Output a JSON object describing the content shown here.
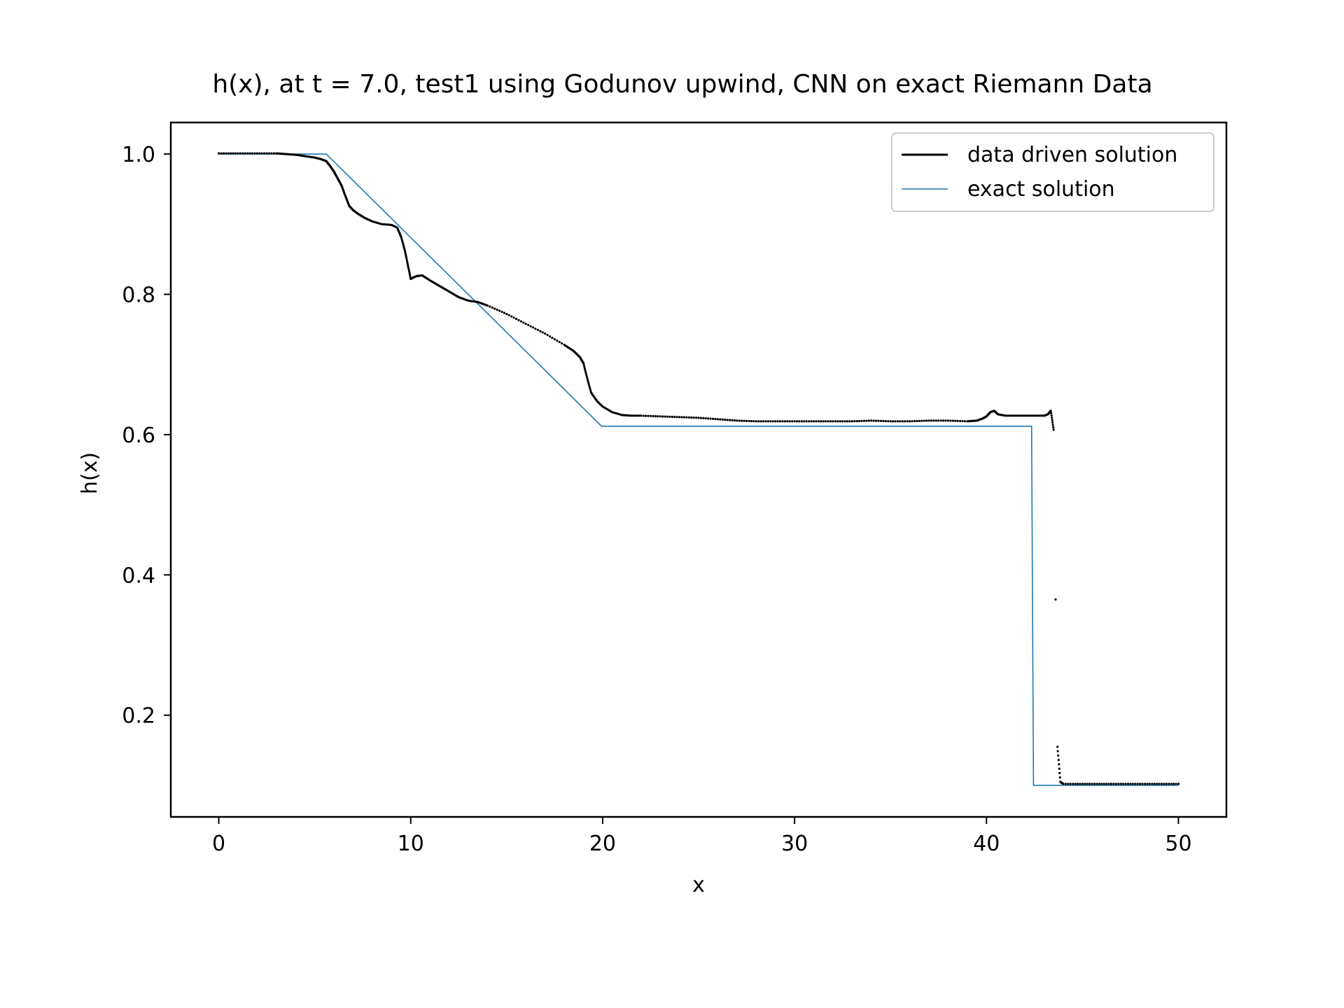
{
  "chart_data": {
    "type": "line",
    "title": "h(x), at t = 7.0, test1 using Godunov upwind, CNN on exact Riemann Data",
    "xlabel": "x",
    "ylabel": "h(x)",
    "xlim": [
      -2.5,
      52.5
    ],
    "ylim": [
      0.055,
      1.045
    ],
    "xticks": [
      0,
      10,
      20,
      30,
      40,
      50
    ],
    "xtick_labels": [
      "0",
      "10",
      "20",
      "30",
      "40",
      "50"
    ],
    "yticks": [
      0.2,
      0.4,
      0.6,
      0.8,
      1.0
    ],
    "ytick_labels": [
      "0.2",
      "0.4",
      "0.6",
      "0.8",
      "1.0"
    ],
    "grid": false,
    "legend": {
      "position": "top-right"
    },
    "series": [
      {
        "name": "data driven solution",
        "color": "#000000",
        "style": "dotted-markers",
        "x": [
          0,
          1,
          2,
          3,
          3.5,
          4,
          4.5,
          5,
          5.3,
          5.6,
          5.8,
          6.0,
          6.2,
          6.4,
          6.6,
          6.8,
          7.0,
          7.3,
          7.6,
          8.0,
          8.5,
          9.0,
          9.3,
          9.5,
          9.7,
          9.85,
          10.0,
          10.3,
          10.6,
          11.0,
          11.5,
          12.0,
          12.5,
          13.0,
          13.5,
          14.0,
          15.0,
          16.0,
          17.0,
          18.0,
          18.5,
          18.8,
          19.0,
          19.2,
          19.4,
          19.7,
          20.0,
          20.5,
          21.0,
          21.5,
          22.0,
          23.0,
          24.0,
          25.0,
          26.0,
          27.0,
          28.0,
          29.0,
          30.0,
          31.0,
          32.0,
          33.0,
          34.0,
          35.0,
          36.0,
          37.0,
          38.0,
          39.0,
          39.5,
          39.8,
          40.0,
          40.2,
          40.4,
          40.6,
          41.0,
          41.5,
          42.0,
          42.5,
          43.0,
          43.2,
          43.35,
          43.5,
          43.6,
          43.7,
          43.85,
          44.0,
          45.0,
          46.0,
          47.0,
          48.0,
          49.0,
          50.0
        ],
        "y": [
          1.001,
          1.001,
          1.001,
          1.001,
          1.0,
          0.999,
          0.997,
          0.995,
          0.993,
          0.99,
          0.983,
          0.975,
          0.965,
          0.955,
          0.94,
          0.926,
          0.92,
          0.914,
          0.909,
          0.904,
          0.9,
          0.899,
          0.895,
          0.882,
          0.862,
          0.842,
          0.822,
          0.826,
          0.827,
          0.82,
          0.812,
          0.804,
          0.796,
          0.791,
          0.789,
          0.784,
          0.772,
          0.758,
          0.744,
          0.728,
          0.719,
          0.711,
          0.702,
          0.68,
          0.66,
          0.648,
          0.64,
          0.632,
          0.628,
          0.627,
          0.627,
          0.626,
          0.625,
          0.624,
          0.622,
          0.62,
          0.619,
          0.619,
          0.619,
          0.619,
          0.619,
          0.619,
          0.62,
          0.619,
          0.619,
          0.62,
          0.62,
          0.619,
          0.62,
          0.623,
          0.626,
          0.632,
          0.634,
          0.629,
          0.627,
          0.627,
          0.627,
          0.627,
          0.627,
          0.629,
          0.634,
          0.607,
          0.365,
          0.155,
          0.105,
          0.102,
          0.102,
          0.102,
          0.102,
          0.102,
          0.102,
          0.102
        ]
      },
      {
        "name": "exact solution",
        "color": "#1f77b4",
        "style": "solid",
        "x": [
          0,
          5.6,
          19.95,
          42.35,
          42.45,
          50
        ],
        "y": [
          1.0,
          1.0,
          0.612,
          0.612,
          0.1,
          0.1
        ]
      }
    ]
  }
}
